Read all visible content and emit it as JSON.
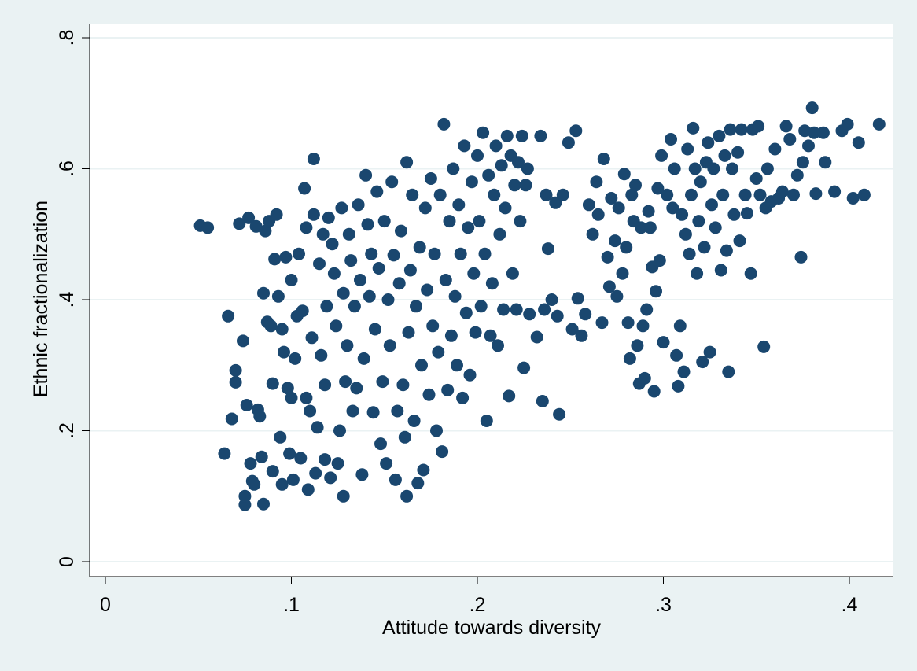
{
  "chart_data": {
    "type": "scatter",
    "title": "",
    "xlabel": "Attitude towards diversity",
    "ylabel": "Ethnic fractionalization",
    "xlim": [
      0,
      0.42
    ],
    "ylim": [
      0,
      0.8
    ],
    "x_ticks": [
      0,
      0.1,
      0.2,
      0.3,
      0.4
    ],
    "x_tick_labels": [
      "0",
      ".1",
      ".2",
      ".3",
      ".4"
    ],
    "y_ticks": [
      0,
      0.2,
      0.4,
      0.6,
      0.8
    ],
    "y_tick_labels": [
      "0",
      ".2",
      ".4",
      ".6",
      ".8"
    ],
    "grid": "horizontal",
    "legend": "none",
    "colors": {
      "marker": "#1a476f",
      "outer_background": "#eaf2f3",
      "plot_background": "#ffffff",
      "gridline": "#eaf2f3",
      "axis": "#000000"
    },
    "series": [
      {
        "marker": "filled-circle",
        "points": [
          [
            0.051,
            0.513
          ],
          [
            0.055,
            0.51
          ],
          [
            0.064,
            0.165
          ],
          [
            0.066,
            0.375
          ],
          [
            0.068,
            0.218
          ],
          [
            0.07,
            0.292
          ],
          [
            0.07,
            0.274
          ],
          [
            0.072,
            0.516
          ],
          [
            0.074,
            0.337
          ],
          [
            0.075,
            0.087
          ],
          [
            0.075,
            0.1
          ],
          [
            0.076,
            0.239
          ],
          [
            0.077,
            0.525
          ],
          [
            0.078,
            0.15
          ],
          [
            0.079,
            0.123
          ],
          [
            0.08,
            0.118
          ],
          [
            0.081,
            0.512
          ],
          [
            0.082,
            0.232
          ],
          [
            0.083,
            0.222
          ],
          [
            0.084,
            0.16
          ],
          [
            0.085,
            0.088
          ],
          [
            0.085,
            0.41
          ],
          [
            0.086,
            0.505
          ],
          [
            0.087,
            0.366
          ],
          [
            0.088,
            0.52
          ],
          [
            0.089,
            0.36
          ],
          [
            0.09,
            0.138
          ],
          [
            0.09,
            0.272
          ],
          [
            0.091,
            0.462
          ],
          [
            0.092,
            0.53
          ],
          [
            0.093,
            0.405
          ],
          [
            0.094,
            0.19
          ],
          [
            0.095,
            0.118
          ],
          [
            0.095,
            0.355
          ],
          [
            0.096,
            0.32
          ],
          [
            0.097,
            0.465
          ],
          [
            0.098,
            0.265
          ],
          [
            0.099,
            0.165
          ],
          [
            0.1,
            0.43
          ],
          [
            0.1,
            0.25
          ],
          [
            0.101,
            0.125
          ],
          [
            0.102,
            0.31
          ],
          [
            0.103,
            0.375
          ],
          [
            0.104,
            0.47
          ],
          [
            0.105,
            0.158
          ],
          [
            0.106,
            0.383
          ],
          [
            0.107,
            0.57
          ],
          [
            0.108,
            0.25
          ],
          [
            0.108,
            0.51
          ],
          [
            0.109,
            0.11
          ],
          [
            0.11,
            0.23
          ],
          [
            0.111,
            0.342
          ],
          [
            0.112,
            0.615
          ],
          [
            0.112,
            0.53
          ],
          [
            0.113,
            0.135
          ],
          [
            0.114,
            0.205
          ],
          [
            0.115,
            0.455
          ],
          [
            0.116,
            0.315
          ],
          [
            0.117,
            0.5
          ],
          [
            0.118,
            0.156
          ],
          [
            0.118,
            0.27
          ],
          [
            0.119,
            0.39
          ],
          [
            0.12,
            0.525
          ],
          [
            0.121,
            0.128
          ],
          [
            0.122,
            0.485
          ],
          [
            0.123,
            0.44
          ],
          [
            0.124,
            0.36
          ],
          [
            0.125,
            0.15
          ],
          [
            0.126,
            0.2
          ],
          [
            0.127,
            0.54
          ],
          [
            0.128,
            0.1
          ],
          [
            0.128,
            0.41
          ],
          [
            0.129,
            0.275
          ],
          [
            0.13,
            0.33
          ],
          [
            0.131,
            0.5
          ],
          [
            0.132,
            0.46
          ],
          [
            0.133,
            0.23
          ],
          [
            0.134,
            0.39
          ],
          [
            0.135,
            0.265
          ],
          [
            0.136,
            0.545
          ],
          [
            0.137,
            0.43
          ],
          [
            0.138,
            0.133
          ],
          [
            0.139,
            0.31
          ],
          [
            0.14,
            0.59
          ],
          [
            0.141,
            0.515
          ],
          [
            0.142,
            0.405
          ],
          [
            0.143,
            0.47
          ],
          [
            0.144,
            0.228
          ],
          [
            0.145,
            0.355
          ],
          [
            0.146,
            0.565
          ],
          [
            0.147,
            0.448
          ],
          [
            0.148,
            0.18
          ],
          [
            0.149,
            0.275
          ],
          [
            0.15,
            0.52
          ],
          [
            0.151,
            0.15
          ],
          [
            0.152,
            0.4
          ],
          [
            0.153,
            0.33
          ],
          [
            0.154,
            0.58
          ],
          [
            0.155,
            0.468
          ],
          [
            0.156,
            0.125
          ],
          [
            0.157,
            0.23
          ],
          [
            0.158,
            0.425
          ],
          [
            0.159,
            0.505
          ],
          [
            0.16,
            0.27
          ],
          [
            0.161,
            0.19
          ],
          [
            0.162,
            0.1
          ],
          [
            0.162,
            0.61
          ],
          [
            0.163,
            0.35
          ],
          [
            0.164,
            0.445
          ],
          [
            0.165,
            0.56
          ],
          [
            0.166,
            0.215
          ],
          [
            0.167,
            0.39
          ],
          [
            0.168,
            0.12
          ],
          [
            0.169,
            0.48
          ],
          [
            0.17,
            0.3
          ],
          [
            0.171,
            0.14
          ],
          [
            0.172,
            0.54
          ],
          [
            0.173,
            0.415
          ],
          [
            0.174,
            0.255
          ],
          [
            0.175,
            0.585
          ],
          [
            0.176,
            0.36
          ],
          [
            0.177,
            0.47
          ],
          [
            0.178,
            0.2
          ],
          [
            0.179,
            0.32
          ],
          [
            0.18,
            0.56
          ],
          [
            0.181,
            0.168
          ],
          [
            0.182,
            0.668
          ],
          [
            0.183,
            0.43
          ],
          [
            0.184,
            0.262
          ],
          [
            0.185,
            0.52
          ],
          [
            0.186,
            0.345
          ],
          [
            0.187,
            0.6
          ],
          [
            0.188,
            0.405
          ],
          [
            0.189,
            0.3
          ],
          [
            0.19,
            0.545
          ],
          [
            0.191,
            0.47
          ],
          [
            0.192,
            0.25
          ],
          [
            0.193,
            0.635
          ],
          [
            0.194,
            0.38
          ],
          [
            0.195,
            0.51
          ],
          [
            0.196,
            0.285
          ],
          [
            0.197,
            0.58
          ],
          [
            0.198,
            0.44
          ],
          [
            0.199,
            0.35
          ],
          [
            0.2,
            0.62
          ],
          [
            0.201,
            0.52
          ],
          [
            0.202,
            0.39
          ],
          [
            0.203,
            0.655
          ],
          [
            0.204,
            0.47
          ],
          [
            0.205,
            0.215
          ],
          [
            0.206,
            0.59
          ],
          [
            0.207,
            0.345
          ],
          [
            0.208,
            0.425
          ],
          [
            0.209,
            0.56
          ],
          [
            0.21,
            0.635
          ],
          [
            0.211,
            0.33
          ],
          [
            0.212,
            0.5
          ],
          [
            0.213,
            0.605
          ],
          [
            0.214,
            0.385
          ],
          [
            0.215,
            0.54
          ],
          [
            0.216,
            0.65
          ],
          [
            0.217,
            0.253
          ],
          [
            0.218,
            0.62
          ],
          [
            0.219,
            0.44
          ],
          [
            0.22,
            0.575
          ],
          [
            0.221,
            0.385
          ],
          [
            0.222,
            0.61
          ],
          [
            0.223,
            0.52
          ],
          [
            0.224,
            0.65
          ],
          [
            0.225,
            0.296
          ],
          [
            0.226,
            0.575
          ],
          [
            0.227,
            0.6
          ],
          [
            0.228,
            0.378
          ],
          [
            0.232,
            0.343
          ],
          [
            0.234,
            0.65
          ],
          [
            0.235,
            0.245
          ],
          [
            0.236,
            0.385
          ],
          [
            0.237,
            0.56
          ],
          [
            0.238,
            0.478
          ],
          [
            0.24,
            0.4
          ],
          [
            0.242,
            0.548
          ],
          [
            0.243,
            0.375
          ],
          [
            0.244,
            0.225
          ],
          [
            0.246,
            0.56
          ],
          [
            0.249,
            0.64
          ],
          [
            0.251,
            0.355
          ],
          [
            0.253,
            0.658
          ],
          [
            0.254,
            0.402
          ],
          [
            0.256,
            0.345
          ],
          [
            0.258,
            0.378
          ],
          [
            0.26,
            0.545
          ],
          [
            0.262,
            0.5
          ],
          [
            0.264,
            0.58
          ],
          [
            0.265,
            0.53
          ],
          [
            0.267,
            0.365
          ],
          [
            0.268,
            0.615
          ],
          [
            0.27,
            0.465
          ],
          [
            0.271,
            0.42
          ],
          [
            0.272,
            0.555
          ],
          [
            0.274,
            0.49
          ],
          [
            0.275,
            0.405
          ],
          [
            0.276,
            0.54
          ],
          [
            0.278,
            0.44
          ],
          [
            0.279,
            0.592
          ],
          [
            0.28,
            0.48
          ],
          [
            0.281,
            0.365
          ],
          [
            0.282,
            0.31
          ],
          [
            0.283,
            0.56
          ],
          [
            0.284,
            0.52
          ],
          [
            0.285,
            0.575
          ],
          [
            0.286,
            0.33
          ],
          [
            0.287,
            0.272
          ],
          [
            0.288,
            0.51
          ],
          [
            0.289,
            0.36
          ],
          [
            0.29,
            0.28
          ],
          [
            0.291,
            0.385
          ],
          [
            0.292,
            0.535
          ],
          [
            0.293,
            0.51
          ],
          [
            0.294,
            0.45
          ],
          [
            0.295,
            0.26
          ],
          [
            0.296,
            0.413
          ],
          [
            0.297,
            0.57
          ],
          [
            0.298,
            0.46
          ],
          [
            0.299,
            0.62
          ],
          [
            0.3,
            0.335
          ],
          [
            0.302,
            0.56
          ],
          [
            0.304,
            0.645
          ],
          [
            0.305,
            0.54
          ],
          [
            0.306,
            0.6
          ],
          [
            0.307,
            0.315
          ],
          [
            0.308,
            0.268
          ],
          [
            0.309,
            0.36
          ],
          [
            0.31,
            0.53
          ],
          [
            0.311,
            0.29
          ],
          [
            0.312,
            0.5
          ],
          [
            0.313,
            0.63
          ],
          [
            0.314,
            0.47
          ],
          [
            0.315,
            0.56
          ],
          [
            0.316,
            0.662
          ],
          [
            0.317,
            0.6
          ],
          [
            0.318,
            0.44
          ],
          [
            0.319,
            0.52
          ],
          [
            0.32,
            0.58
          ],
          [
            0.321,
            0.305
          ],
          [
            0.322,
            0.48
          ],
          [
            0.323,
            0.61
          ],
          [
            0.324,
            0.64
          ],
          [
            0.325,
            0.32
          ],
          [
            0.326,
            0.545
          ],
          [
            0.327,
            0.6
          ],
          [
            0.328,
            0.51
          ],
          [
            0.33,
            0.65
          ],
          [
            0.331,
            0.445
          ],
          [
            0.332,
            0.56
          ],
          [
            0.333,
            0.62
          ],
          [
            0.334,
            0.475
          ],
          [
            0.335,
            0.29
          ],
          [
            0.336,
            0.66
          ],
          [
            0.337,
            0.6
          ],
          [
            0.338,
            0.53
          ],
          [
            0.34,
            0.625
          ],
          [
            0.341,
            0.49
          ],
          [
            0.342,
            0.66
          ],
          [
            0.344,
            0.56
          ],
          [
            0.345,
            0.532
          ],
          [
            0.347,
            0.44
          ],
          [
            0.348,
            0.66
          ],
          [
            0.35,
            0.585
          ],
          [
            0.351,
            0.665
          ],
          [
            0.352,
            0.56
          ],
          [
            0.354,
            0.328
          ],
          [
            0.355,
            0.54
          ],
          [
            0.356,
            0.6
          ],
          [
            0.358,
            0.55
          ],
          [
            0.36,
            0.63
          ],
          [
            0.362,
            0.555
          ],
          [
            0.364,
            0.565
          ],
          [
            0.366,
            0.665
          ],
          [
            0.368,
            0.645
          ],
          [
            0.37,
            0.56
          ],
          [
            0.372,
            0.59
          ],
          [
            0.374,
            0.465
          ],
          [
            0.375,
            0.61
          ],
          [
            0.376,
            0.658
          ],
          [
            0.378,
            0.635
          ],
          [
            0.38,
            0.693
          ],
          [
            0.381,
            0.655
          ],
          [
            0.382,
            0.562
          ],
          [
            0.386,
            0.655
          ],
          [
            0.387,
            0.61
          ],
          [
            0.392,
            0.565
          ],
          [
            0.396,
            0.658
          ],
          [
            0.399,
            0.668
          ],
          [
            0.402,
            0.555
          ],
          [
            0.405,
            0.64
          ],
          [
            0.408,
            0.56
          ],
          [
            0.416,
            0.668
          ]
        ]
      }
    ]
  }
}
